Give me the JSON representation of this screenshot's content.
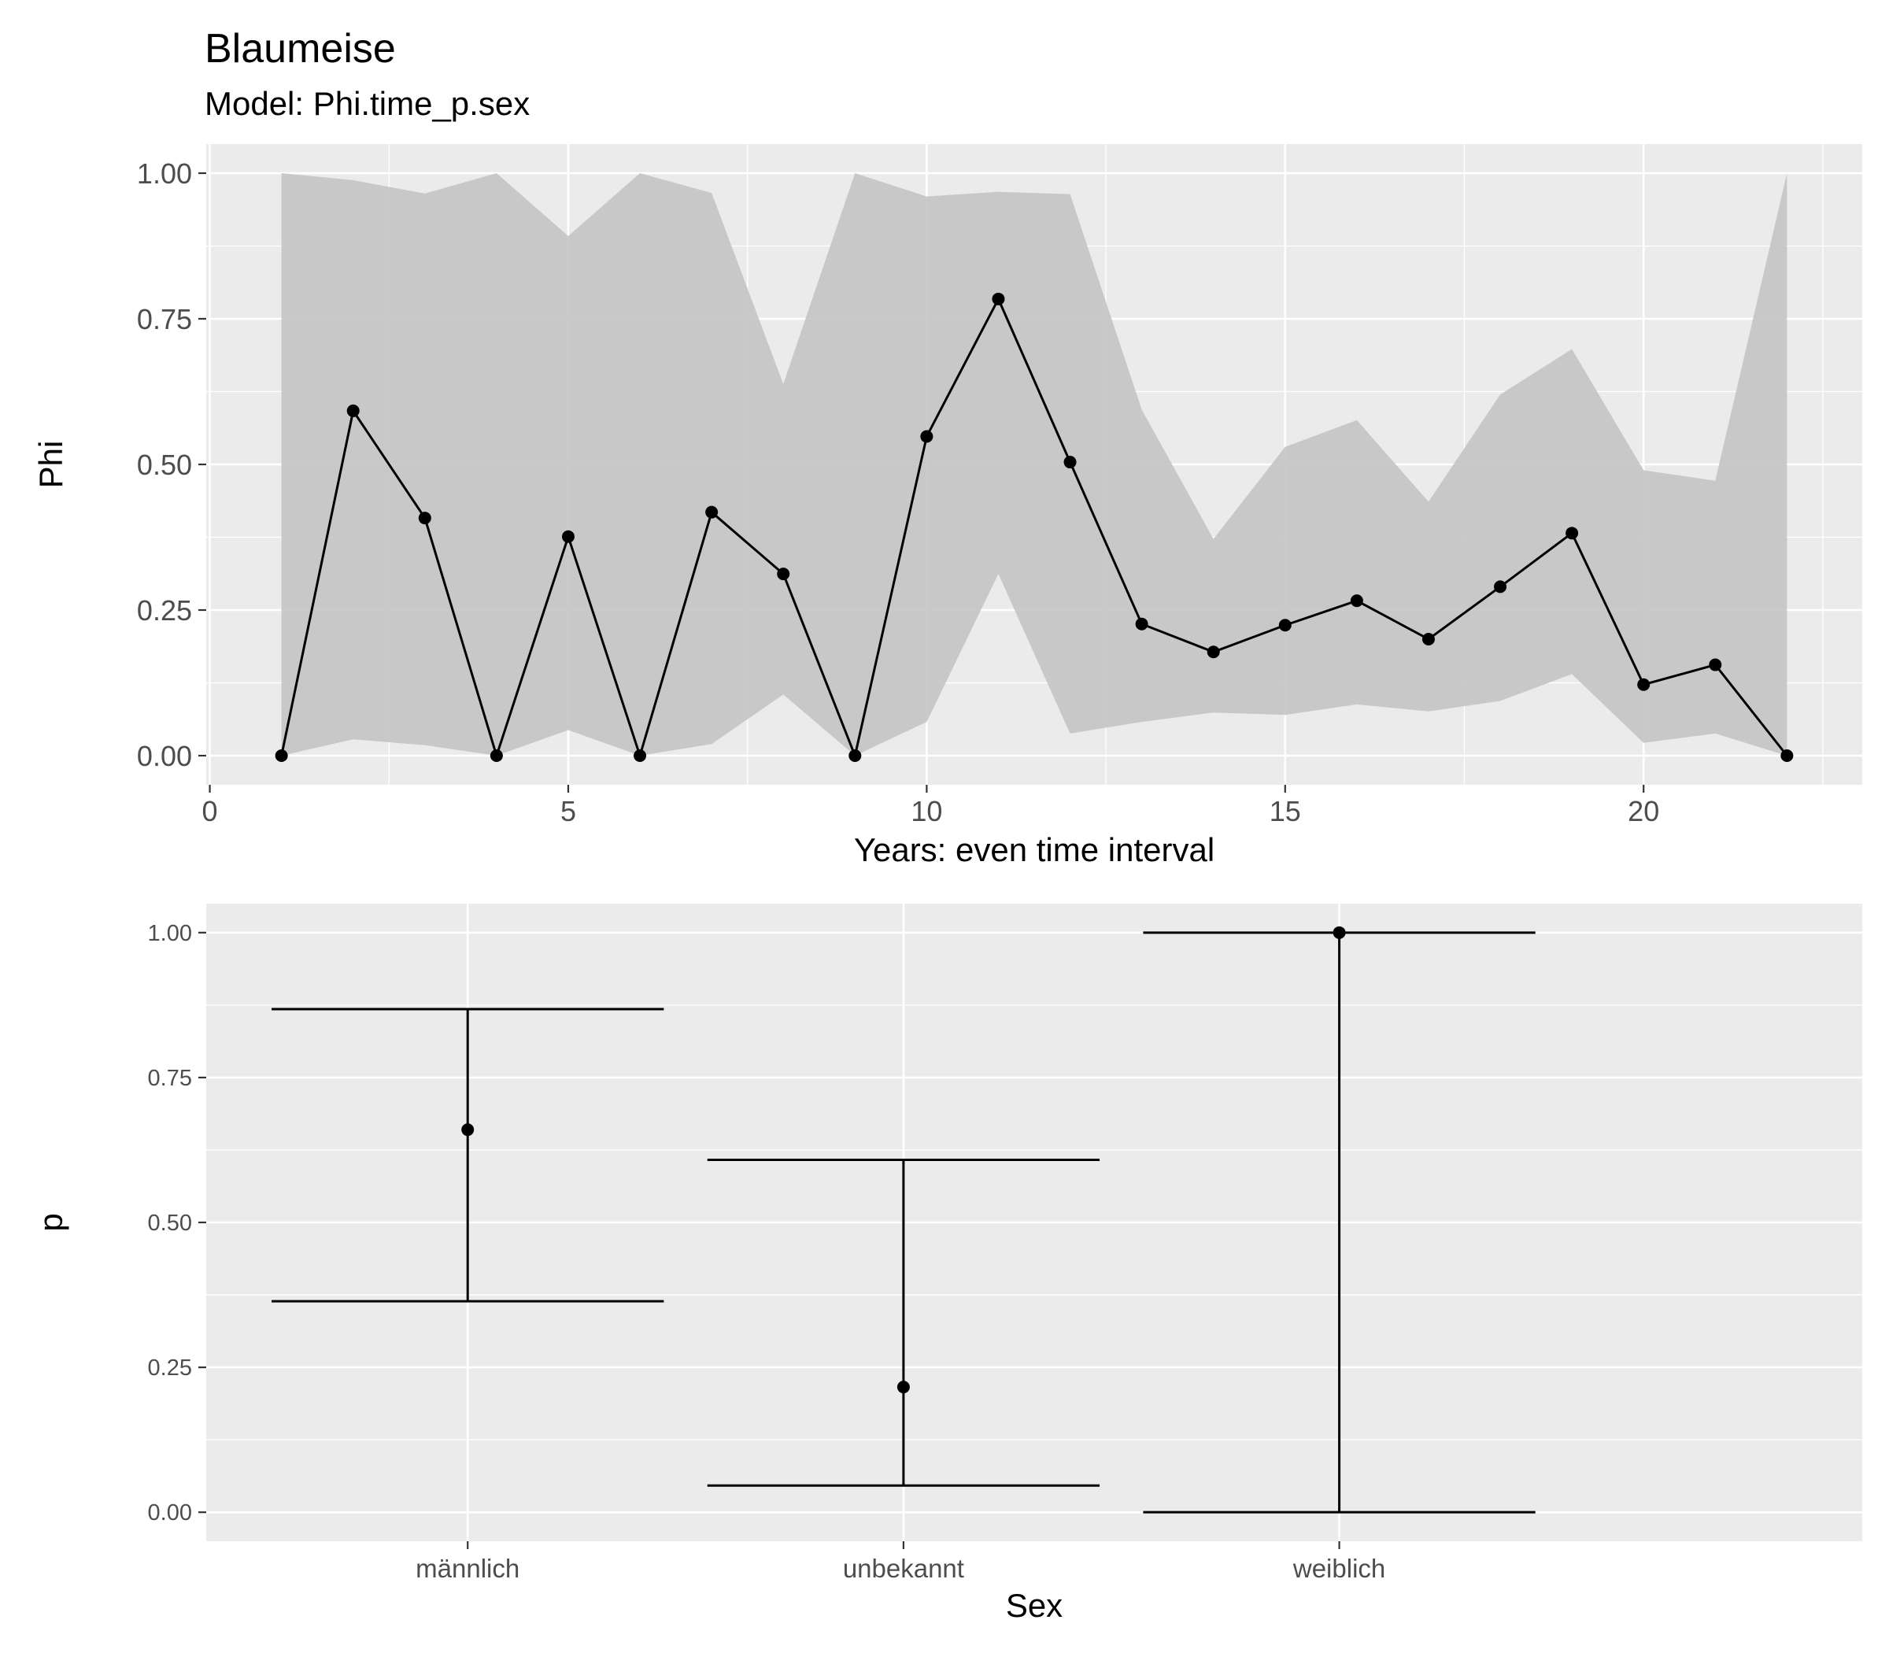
{
  "title": "Blaumeise",
  "subtitle": "Model: Phi.time_p.sex",
  "colors": {
    "panel_background": "#ebebeb",
    "grid": "#ffffff",
    "ribbon": "#c4c4c4",
    "line": "#000000",
    "tick_text": "#4d4d4d"
  },
  "chart_data": [
    {
      "type": "line",
      "name": "phi-panel",
      "xlabel": "Years: even time interval",
      "ylabel": "Phi",
      "xlim": [
        -0.05,
        23.05
      ],
      "ylim": [
        -0.05,
        1.05
      ],
      "x_ticks": [
        0,
        5,
        10,
        15,
        20
      ],
      "x_tick_labels": [
        "0",
        "5",
        "10",
        "15",
        "20"
      ],
      "y_ticks": [
        0,
        0.25,
        0.5,
        0.75,
        1
      ],
      "y_tick_labels": [
        "0.00",
        "0.25",
        "0.50",
        "0.75",
        "1.00"
      ],
      "grid": true,
      "ribbon": "confidence interval",
      "x": [
        1,
        2,
        3,
        4,
        5,
        6,
        7,
        8,
        9,
        10,
        11,
        12,
        13,
        14,
        15,
        16,
        17,
        18,
        19,
        20,
        21,
        22
      ],
      "estimate": [
        0.0,
        0.592,
        0.408,
        0.0,
        0.376,
        0.0,
        0.418,
        0.312,
        0.0,
        0.548,
        0.784,
        0.504,
        0.226,
        0.178,
        0.224,
        0.266,
        0.2,
        0.29,
        0.382,
        0.122,
        0.156,
        0.0
      ],
      "lower": [
        0.0,
        0.028,
        0.018,
        0.0,
        0.044,
        0.0,
        0.02,
        0.105,
        0.0,
        0.058,
        0.312,
        0.038,
        0.058,
        0.074,
        0.07,
        0.088,
        0.076,
        0.094,
        0.14,
        0.022,
        0.038,
        0.0
      ],
      "upper": [
        1.0,
        0.988,
        0.965,
        1.0,
        0.892,
        1.0,
        0.966,
        0.638,
        1.0,
        0.96,
        0.968,
        0.964,
        0.594,
        0.372,
        0.53,
        0.576,
        0.436,
        0.62,
        0.698,
        0.49,
        0.472,
        1.0
      ]
    },
    {
      "type": "errorbar",
      "name": "p-panel",
      "xlabel": "Sex",
      "ylabel": "p",
      "categories": [
        "männlich",
        "unbekannt",
        "weiblich"
      ],
      "ylim": [
        -0.05,
        1.05
      ],
      "y_ticks": [
        0,
        0.25,
        0.5,
        0.75,
        1
      ],
      "y_tick_labels": [
        "0.00",
        "0.25",
        "0.50",
        "0.75",
        "1.00"
      ],
      "grid": true,
      "estimate": [
        0.66,
        0.216,
        1.0
      ],
      "lower": [
        0.364,
        0.046,
        0.0
      ],
      "upper": [
        0.868,
        0.608,
        1.0
      ]
    }
  ]
}
